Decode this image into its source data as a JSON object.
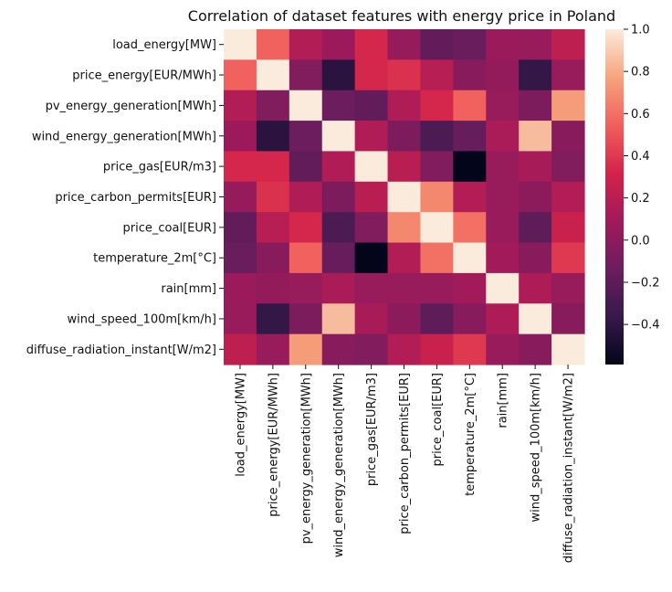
{
  "chart_data": {
    "type": "heatmap",
    "title": "Correlation of dataset features with energy price in Poland",
    "xlabel": "",
    "ylabel": "",
    "rows": [
      "load_energy[MW]",
      "price_energy[EUR/MWh]",
      "pv_energy_generation[MWh]",
      "wind_energy_generation[MWh]",
      "price_gas[EUR/m3]",
      "price_carbon_permits[EUR]",
      "price_coal[EUR]",
      "temperature_2m[°C]",
      "rain[mm]",
      "wind_speed_100m[km/h]",
      "diffuse_radiation_instant[W/m2]"
    ],
    "columns": [
      "load_energy[MW]",
      "price_energy[EUR/MWh]",
      "pv_energy_generation[MWh]",
      "wind_energy_generation[MWh]",
      "price_gas[EUR/m3]",
      "price_carbon_permits[EUR]",
      "price_coal[EUR]",
      "temperature_2m[°C]",
      "rain[mm]",
      "wind_speed_100m[km/h]",
      "diffuse_radiation_instant[W/m2]"
    ],
    "values": [
      [
        1.0,
        0.55,
        0.17,
        0.07,
        0.33,
        0.04,
        -0.18,
        -0.15,
        0.06,
        0.05,
        0.22
      ],
      [
        0.55,
        1.0,
        -0.05,
        -0.42,
        0.33,
        0.37,
        0.19,
        -0.02,
        0.03,
        -0.38,
        0.05
      ],
      [
        0.17,
        -0.05,
        1.0,
        -0.14,
        -0.18,
        0.16,
        0.33,
        0.55,
        0.05,
        -0.07,
        0.75
      ],
      [
        0.07,
        -0.42,
        -0.14,
        1.0,
        0.16,
        -0.07,
        -0.27,
        -0.16,
        0.13,
        0.85,
        -0.02
      ],
      [
        0.33,
        0.33,
        -0.18,
        0.16,
        1.0,
        0.2,
        -0.05,
        -0.59,
        0.05,
        0.12,
        -0.05
      ],
      [
        0.04,
        0.37,
        0.16,
        -0.07,
        0.2,
        1.0,
        0.68,
        0.17,
        0.05,
        0.0,
        0.17
      ],
      [
        -0.18,
        0.19,
        0.33,
        -0.27,
        -0.05,
        0.68,
        1.0,
        0.6,
        0.05,
        -0.2,
        0.27
      ],
      [
        -0.15,
        -0.02,
        0.55,
        -0.16,
        -0.59,
        0.17,
        0.6,
        1.0,
        0.1,
        -0.02,
        0.4
      ],
      [
        0.06,
        0.03,
        0.05,
        0.13,
        0.05,
        0.05,
        0.05,
        0.1,
        1.0,
        0.15,
        0.05
      ],
      [
        0.05,
        -0.38,
        -0.07,
        0.85,
        0.12,
        0.0,
        -0.2,
        -0.02,
        0.15,
        1.0,
        -0.02
      ],
      [
        0.22,
        0.05,
        0.75,
        -0.02,
        -0.05,
        0.17,
        0.27,
        0.4,
        0.05,
        -0.02,
        1.0
      ]
    ],
    "colorbar": {
      "min": -0.59,
      "max": 1.0,
      "ticks": [
        -0.4,
        -0.2,
        0.0,
        0.2,
        0.4,
        0.6,
        0.8,
        1.0
      ],
      "tick_labels": [
        "−0.4",
        "−0.2",
        "0.0",
        "0.2",
        "0.4",
        "0.6",
        "0.8",
        "1.0"
      ],
      "colormap": "rocket",
      "colormap_stops": [
        "#03051a",
        "#37194b",
        "#6d1d5e",
        "#a11a5b",
        "#d3234a",
        "#f1605d",
        "#f6a47c",
        "#faebdd"
      ]
    },
    "grid": false,
    "legend": "colorbar right"
  }
}
